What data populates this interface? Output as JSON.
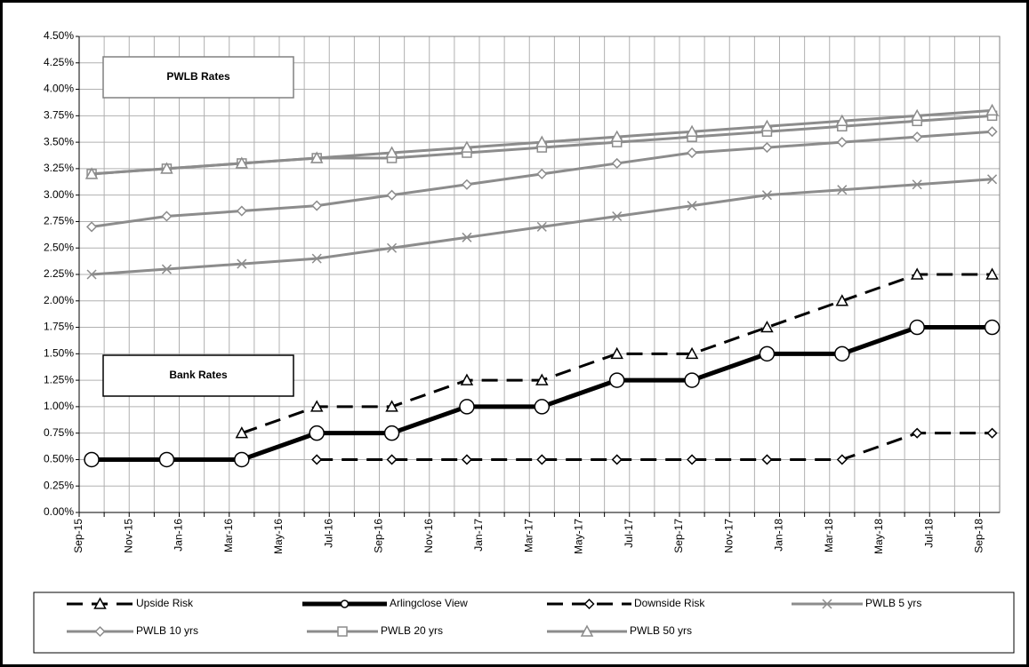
{
  "chart_data": {
    "type": "line",
    "annotations": [
      "PWLB Rates",
      "Bank Rates"
    ],
    "x": [
      0.5,
      3.5,
      6.5,
      9.5,
      12.5,
      15.5,
      18.5,
      21.5,
      24.5,
      27.5,
      30.5,
      33.5,
      36.5
    ],
    "xlim": [
      0,
      36.8
    ],
    "xticks": [
      {
        "value": 0,
        "label": "Sep-15"
      },
      {
        "value": 2,
        "label": "Nov-15"
      },
      {
        "value": 4,
        "label": "Jan-16"
      },
      {
        "value": 6,
        "label": "Mar-16"
      },
      {
        "value": 8,
        "label": "May-16"
      },
      {
        "value": 10,
        "label": "Jul-16"
      },
      {
        "value": 12,
        "label": "Sep-16"
      },
      {
        "value": 14,
        "label": "Nov-16"
      },
      {
        "value": 16,
        "label": "Jan-17"
      },
      {
        "value": 18,
        "label": "Mar-17"
      },
      {
        "value": 20,
        "label": "May-17"
      },
      {
        "value": 22,
        "label": "Jul-17"
      },
      {
        "value": 24,
        "label": "Sep-17"
      },
      {
        "value": 26,
        "label": "Nov-17"
      },
      {
        "value": 28,
        "label": "Jan-18"
      },
      {
        "value": 30,
        "label": "Mar-18"
      },
      {
        "value": 32,
        "label": "May-18"
      },
      {
        "value": 34,
        "label": "Jul-18"
      },
      {
        "value": 36,
        "label": "Sep-18"
      }
    ],
    "ylim": [
      0,
      4.5
    ],
    "yticks": [
      {
        "value": 0,
        "label": "0.00%"
      },
      {
        "value": 0.25,
        "label": "0.25%"
      },
      {
        "value": 0.5,
        "label": "0.50%"
      },
      {
        "value": 0.75,
        "label": "0.75%"
      },
      {
        "value": 1,
        "label": "1.00%"
      },
      {
        "value": 1.25,
        "label": "1.25%"
      },
      {
        "value": 1.5,
        "label": "1.50%"
      },
      {
        "value": 1.75,
        "label": "1.75%"
      },
      {
        "value": 2,
        "label": "2.00%"
      },
      {
        "value": 2.25,
        "label": "2.25%"
      },
      {
        "value": 2.5,
        "label": "2.50%"
      },
      {
        "value": 2.75,
        "label": "2.75%"
      },
      {
        "value": 3,
        "label": "3.00%"
      },
      {
        "value": 3.25,
        "label": "3.25%"
      },
      {
        "value": 3.5,
        "label": "3.50%"
      },
      {
        "value": 3.75,
        "label": "3.75%"
      },
      {
        "value": 4,
        "label": "4.00%"
      },
      {
        "value": 4.25,
        "label": "4.25%"
      },
      {
        "value": 4.5,
        "label": "4.50%"
      }
    ],
    "grid": true,
    "series": [
      {
        "name": "Upside Risk",
        "color": "#000000",
        "marker": "triangle",
        "dashed": true,
        "width": 3,
        "values": [
          null,
          null,
          0.75,
          1.0,
          1.0,
          1.25,
          1.25,
          1.5,
          1.5,
          1.75,
          2.0,
          2.25,
          2.25
        ]
      },
      {
        "name": "Arlingclose View",
        "color": "#000000",
        "marker": "circle",
        "dashed": false,
        "width": 5,
        "values": [
          0.5,
          0.5,
          0.5,
          0.75,
          0.75,
          1.0,
          1.0,
          1.25,
          1.25,
          1.5,
          1.5,
          1.75,
          1.75
        ]
      },
      {
        "name": "Downside Risk",
        "color": "#000000",
        "marker": "diamond",
        "dashed": true,
        "width": 3,
        "values": [
          null,
          null,
          null,
          0.5,
          0.5,
          0.5,
          0.5,
          0.5,
          0.5,
          0.5,
          0.5,
          0.75,
          0.75
        ]
      },
      {
        "name": "PWLB 5 yrs",
        "color": "#8c8c8c",
        "marker": "cross",
        "dashed": false,
        "width": 3,
        "values": [
          2.25,
          2.3,
          2.35,
          2.4,
          2.5,
          2.6,
          2.7,
          2.8,
          2.9,
          3.0,
          3.05,
          3.1,
          3.15
        ]
      },
      {
        "name": "PWLB 10 yrs",
        "color": "#8c8c8c",
        "marker": "diamond",
        "dashed": false,
        "width": 3,
        "values": [
          2.7,
          2.8,
          2.85,
          2.9,
          3.0,
          3.1,
          3.2,
          3.3,
          3.4,
          3.45,
          3.5,
          3.55,
          3.6
        ]
      },
      {
        "name": "PWLB 20 yrs",
        "color": "#8c8c8c",
        "marker": "square",
        "dashed": false,
        "width": 3,
        "values": [
          3.2,
          3.25,
          3.3,
          3.35,
          3.35,
          3.4,
          3.45,
          3.5,
          3.55,
          3.6,
          3.65,
          3.7,
          3.75
        ]
      },
      {
        "name": "PWLB 50 yrs",
        "color": "#8c8c8c",
        "marker": "triangle",
        "dashed": false,
        "width": 3,
        "values": [
          3.2,
          3.25,
          3.3,
          3.35,
          3.4,
          3.45,
          3.5,
          3.55,
          3.6,
          3.65,
          3.7,
          3.75,
          3.8
        ]
      }
    ]
  }
}
